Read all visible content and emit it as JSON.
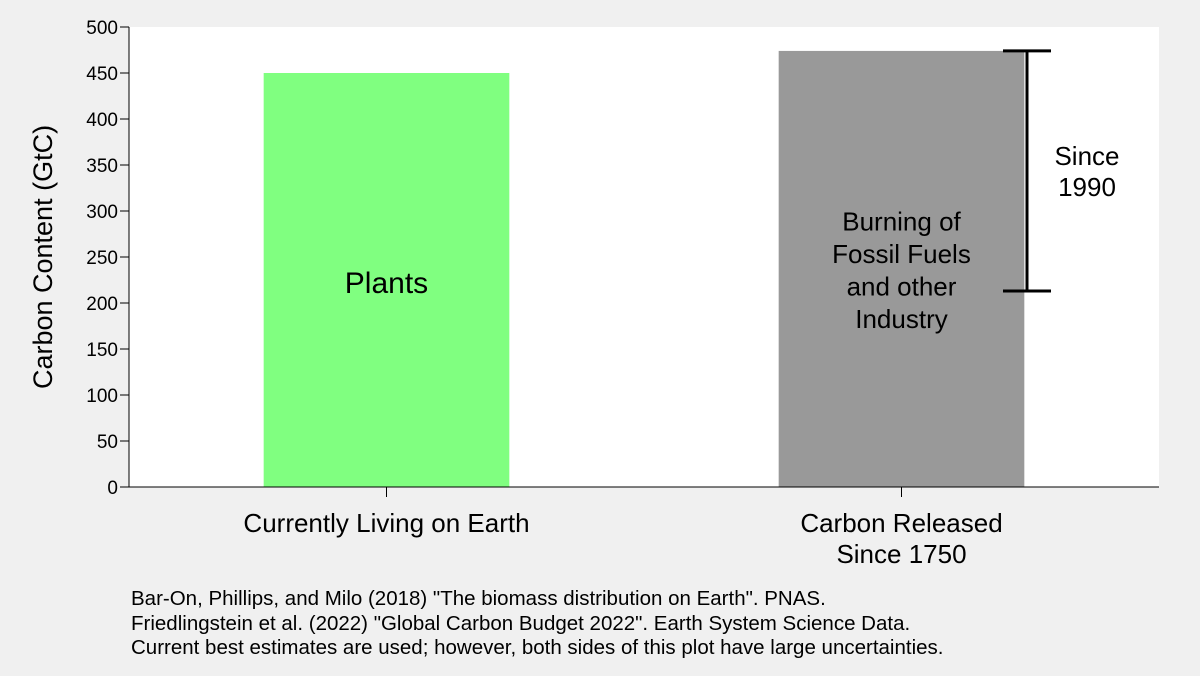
{
  "chart_data": {
    "type": "bar",
    "ylabel": "Carbon Content (GtC)",
    "ylim": [
      0,
      500
    ],
    "yticks": [
      0,
      50,
      100,
      150,
      200,
      250,
      300,
      350,
      400,
      450,
      500
    ],
    "categories": [
      [
        "Currently Living on Earth"
      ],
      [
        "Carbon Released",
        "Since 1750"
      ]
    ],
    "values": [
      450,
      474
    ],
    "bar_labels": [
      [
        "Plants"
      ],
      [
        "Burning of",
        "Fossil Fuels",
        "and other",
        "Industry"
      ]
    ],
    "colors": [
      "#80ff80",
      "#999999"
    ],
    "bracket": {
      "label": [
        "Since",
        "1990"
      ],
      "from": 213,
      "to": 474
    },
    "grid": false
  },
  "footer": {
    "lines": [
      "Bar-On, Phillips, and Milo (2018) \"The biomass distribution on Earth\".  PNAS.",
      "Friedlingstein et al. (2022) \"Global Carbon Budget 2022\".  Earth System Science Data.",
      "Current best estimates are used; however, both sides of this plot have large uncertainties."
    ]
  }
}
